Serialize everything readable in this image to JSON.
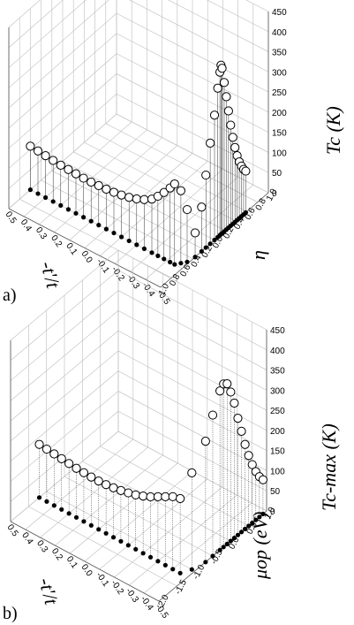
{
  "chart_data": [
    {
      "type": "scatter",
      "panel_label": "a)",
      "axes": {
        "x": {
          "label": "-t'/t",
          "ticks": [
            "0.5",
            "0.4",
            "0.3",
            "0.2",
            "0.1",
            "0.0",
            "-0.1",
            "-0.2",
            "-0.3",
            "-0.4",
            "-0.5"
          ],
          "range": [
            0.5,
            -0.5
          ]
        },
        "y": {
          "label": "η",
          "ticks": [
            "1.0",
            "0.8",
            "0.6",
            "0.4",
            "0.2",
            "0.0",
            "0.2",
            "0.4",
            "0.6",
            "0.8",
            "1.0"
          ],
          "range": [
            0,
            10
          ]
        },
        "z": {
          "label": "Tc (K)",
          "ticks": [
            "0",
            "50",
            "100",
            "150",
            "200",
            "250",
            "300",
            "350",
            "400",
            "450"
          ],
          "range": [
            0,
            450
          ]
        }
      },
      "grid": true,
      "curve_points": [
        {
          "x": 0.5,
          "y": 2.0,
          "z": 108
        },
        {
          "x": 0.45,
          "y": 2.0,
          "z": 106
        },
        {
          "x": 0.4,
          "y": 2.0,
          "z": 104
        },
        {
          "x": 0.35,
          "y": 2.0,
          "z": 102
        },
        {
          "x": 0.3,
          "y": 2.0,
          "z": 100
        },
        {
          "x": 0.25,
          "y": 2.0,
          "z": 99
        },
        {
          "x": 0.2,
          "y": 2.0,
          "z": 98
        },
        {
          "x": 0.15,
          "y": 2.0,
          "z": 97
        },
        {
          "x": 0.1,
          "y": 2.0,
          "z": 97
        },
        {
          "x": 0.05,
          "y": 2.0,
          "z": 98
        },
        {
          "x": 0.0,
          "y": 2.0,
          "z": 99
        },
        {
          "x": -0.05,
          "y": 2.0,
          "z": 101
        },
        {
          "x": -0.1,
          "y": 2.0,
          "z": 104
        },
        {
          "x": -0.15,
          "y": 2.0,
          "z": 108
        },
        {
          "x": -0.2,
          "y": 2.0,
          "z": 114
        },
        {
          "x": -0.25,
          "y": 2.0,
          "z": 122
        },
        {
          "x": -0.3,
          "y": 2.0,
          "z": 133
        },
        {
          "x": -0.34,
          "y": 2.0,
          "z": 148
        },
        {
          "x": -0.38,
          "y": 2.0,
          "z": 165
        },
        {
          "x": -0.42,
          "y": 2.0,
          "z": 184
        },
        {
          "x": -0.45,
          "y": 2.0,
          "z": 200
        },
        {
          "x": -0.47,
          "y": 2.3,
          "z": 180
        },
        {
          "x": -0.49,
          "y": 2.6,
          "z": 130
        },
        {
          "x": -0.5,
          "y": 3.2,
          "z": 60
        },
        {
          "x": -0.5,
          "y": 3.8,
          "z": 110
        },
        {
          "x": -0.5,
          "y": 4.2,
          "z": 180
        },
        {
          "x": -0.5,
          "y": 4.6,
          "z": 250
        },
        {
          "x": -0.5,
          "y": 5.0,
          "z": 310
        },
        {
          "x": -0.5,
          "y": 5.3,
          "z": 370
        },
        {
          "x": -0.5,
          "y": 5.5,
          "z": 405
        },
        {
          "x": -0.5,
          "y": 5.6,
          "z": 420
        },
        {
          "x": -0.5,
          "y": 5.7,
          "z": 410
        },
        {
          "x": -0.5,
          "y": 5.9,
          "z": 370
        },
        {
          "x": -0.5,
          "y": 6.1,
          "z": 330
        },
        {
          "x": -0.5,
          "y": 6.3,
          "z": 290
        },
        {
          "x": -0.5,
          "y": 6.5,
          "z": 250
        },
        {
          "x": -0.5,
          "y": 6.7,
          "z": 215
        },
        {
          "x": -0.5,
          "y": 6.9,
          "z": 185
        },
        {
          "x": -0.5,
          "y": 7.1,
          "z": 160
        },
        {
          "x": -0.5,
          "y": 7.3,
          "z": 140
        },
        {
          "x": -0.5,
          "y": 7.5,
          "z": 125
        },
        {
          "x": -0.5,
          "y": 7.7,
          "z": 112
        },
        {
          "x": -0.5,
          "y": 7.9,
          "z": 103
        }
      ]
    },
    {
      "type": "scatter",
      "panel_label": "b)",
      "axes": {
        "x": {
          "label": "-t'/t",
          "ticks": [
            "0.5",
            "0.4",
            "0.3",
            "0.2",
            "0.1",
            "0.0",
            "-0.1",
            "-0.2",
            "-0.3",
            "-0.4",
            "-0.5"
          ],
          "range": [
            0.5,
            -0.5
          ]
        },
        "y": {
          "label": "μop (eV)",
          "ticks": [
            "-2.0",
            "-1.5",
            "-1.0",
            "-0.5",
            "0.0",
            "0.5",
            "1.0"
          ],
          "range": [
            -2.0,
            1.0
          ]
        },
        "z": {
          "label": "Tc-max (K)",
          "ticks": [
            "0",
            "50",
            "100",
            "150",
            "200",
            "250",
            "300",
            "350",
            "400",
            "450"
          ],
          "range": [
            0,
            450
          ]
        }
      },
      "grid": true,
      "curve_points": [
        {
          "x": 0.5,
          "y": -1.2,
          "z": 132
        },
        {
          "x": 0.45,
          "y": -1.2,
          "z": 130
        },
        {
          "x": 0.4,
          "y": -1.2,
          "z": 128
        },
        {
          "x": 0.35,
          "y": -1.2,
          "z": 126
        },
        {
          "x": 0.3,
          "y": -1.2,
          "z": 124
        },
        {
          "x": 0.25,
          "y": -1.2,
          "z": 122
        },
        {
          "x": 0.2,
          "y": -1.2,
          "z": 121
        },
        {
          "x": 0.15,
          "y": -1.2,
          "z": 120
        },
        {
          "x": 0.1,
          "y": -1.2,
          "z": 120
        },
        {
          "x": 0.05,
          "y": -1.2,
          "z": 121
        },
        {
          "x": 0.0,
          "y": -1.2,
          "z": 123
        },
        {
          "x": -0.05,
          "y": -1.2,
          "z": 126
        },
        {
          "x": -0.1,
          "y": -1.2,
          "z": 130
        },
        {
          "x": -0.15,
          "y": -1.2,
          "z": 135
        },
        {
          "x": -0.2,
          "y": -1.2,
          "z": 142
        },
        {
          "x": -0.25,
          "y": -1.2,
          "z": 150
        },
        {
          "x": -0.3,
          "y": -1.2,
          "z": 160
        },
        {
          "x": -0.35,
          "y": -1.2,
          "z": 170
        },
        {
          "x": -0.4,
          "y": -1.2,
          "z": 180
        },
        {
          "x": -0.45,
          "y": -1.2,
          "z": 185
        },
        {
          "x": -0.48,
          "y": -1.0,
          "z": 240
        },
        {
          "x": -0.5,
          "y": -0.7,
          "z": 300
        },
        {
          "x": -0.5,
          "y": -0.5,
          "z": 350
        },
        {
          "x": -0.5,
          "y": -0.3,
          "z": 395
        },
        {
          "x": -0.5,
          "y": -0.2,
          "z": 405
        },
        {
          "x": -0.5,
          "y": -0.1,
          "z": 398
        },
        {
          "x": -0.5,
          "y": 0.0,
          "z": 370
        },
        {
          "x": -0.5,
          "y": 0.1,
          "z": 335
        },
        {
          "x": -0.5,
          "y": 0.2,
          "z": 290
        },
        {
          "x": -0.5,
          "y": 0.3,
          "z": 250
        },
        {
          "x": -0.5,
          "y": 0.4,
          "z": 210
        },
        {
          "x": -0.5,
          "y": 0.5,
          "z": 175
        },
        {
          "x": -0.5,
          "y": 0.6,
          "z": 145
        },
        {
          "x": -0.5,
          "y": 0.7,
          "z": 120
        },
        {
          "x": -0.5,
          "y": 0.8,
          "z": 100
        },
        {
          "x": -0.5,
          "y": 0.9,
          "z": 85
        }
      ]
    }
  ]
}
